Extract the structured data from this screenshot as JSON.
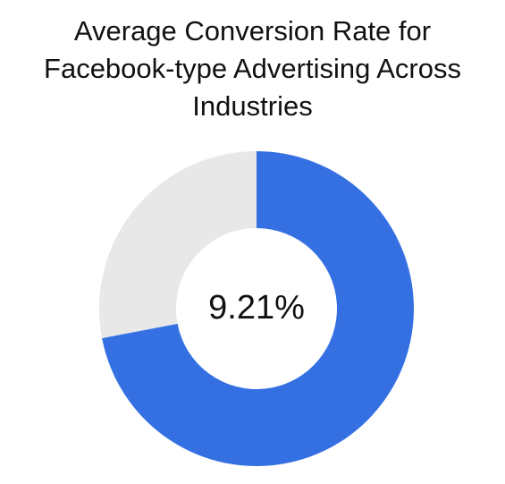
{
  "chart_data": {
    "type": "pie",
    "variant": "donut",
    "title_lines": [
      "Average Conversion Rate for",
      "Facebook-type Advertising Across",
      "Industries"
    ],
    "center_label": "9.21%",
    "slices": [
      {
        "value": 0.72,
        "color": "#3570E3"
      },
      {
        "value": 0.28,
        "color": "#E8E8E8"
      }
    ],
    "start_angle_deg": 0,
    "direction": "clockwise",
    "legend": "none"
  }
}
